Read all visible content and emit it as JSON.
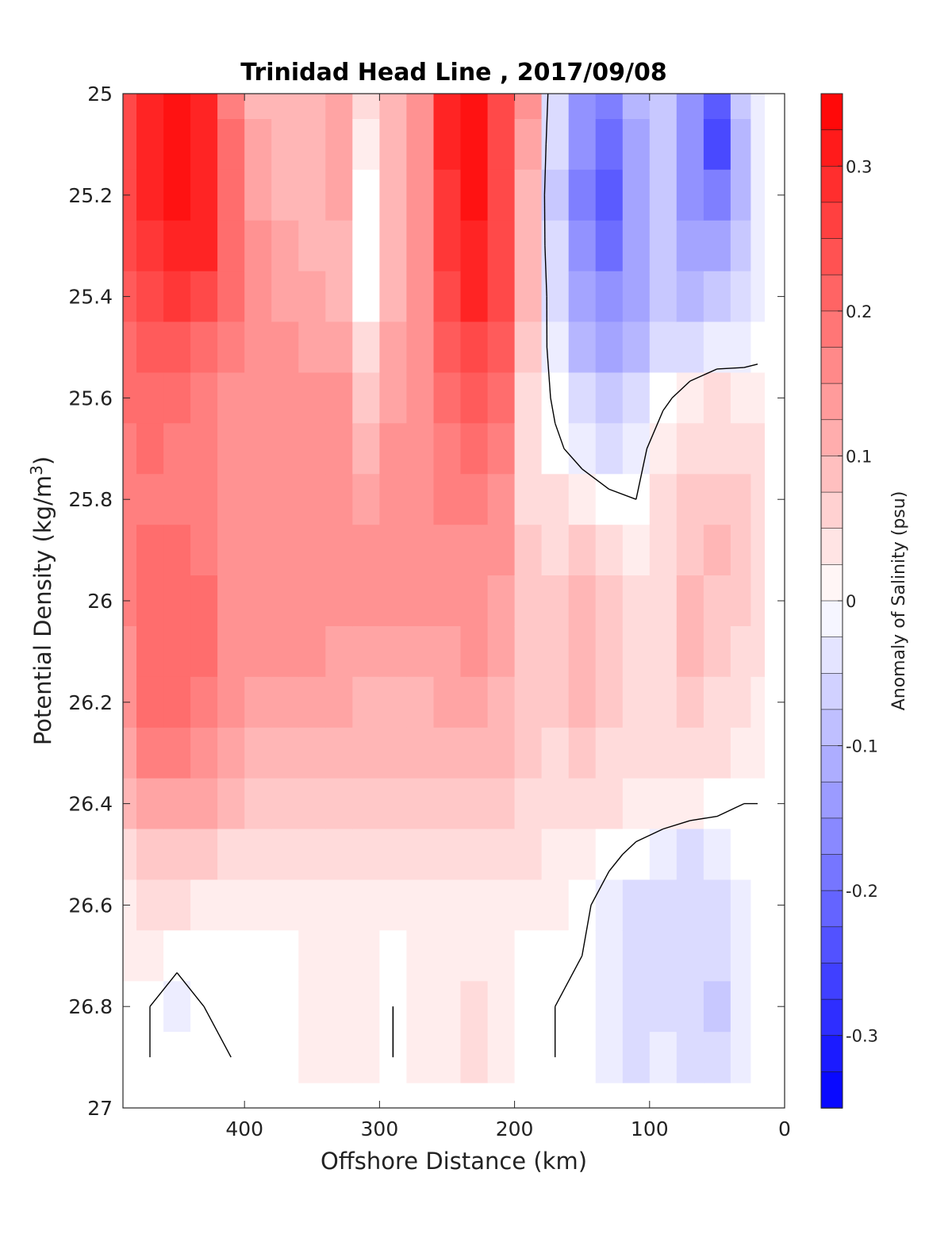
{
  "chart_data": {
    "type": "heatmap",
    "title": "Trinidad Head Line , 2017/09/08",
    "xlabel": "Offshore Distance (km)",
    "ylabel": "Potential Density (kg/m",
    "ylabel_sup": "3",
    "ylabel_close": ")",
    "colorbar_label": "Anomaly of Salinity (psu)",
    "x_reversed": true,
    "y_reversed": true,
    "xlim": [
      0,
      490
    ],
    "ylim": [
      25,
      27
    ],
    "x_ticks": [
      400,
      300,
      200,
      100,
      0
    ],
    "x_tick_labels": [
      "400",
      "300",
      "200",
      "100",
      "0"
    ],
    "y_ticks": [
      25,
      25.2,
      25.4,
      25.6,
      25.8,
      26,
      26.2,
      26.4,
      26.6,
      26.8,
      27
    ],
    "y_tick_labels": [
      "25",
      "25.2",
      "25.4",
      "25.6",
      "25.8",
      "26",
      "26.2",
      "26.4",
      "26.6",
      "26.8",
      "27"
    ],
    "colorbar": {
      "range": [
        -0.35,
        0.35
      ],
      "levels_step": 0.025,
      "ticks": [
        0.3,
        0.2,
        0.1,
        0,
        -0.1,
        -0.2,
        -0.3
      ],
      "tick_labels": [
        "0.3",
        "0.2",
        "0.1",
        "0",
        "-0.1",
        "-0.2",
        "-0.3"
      ],
      "colormap": "blue-white-red",
      "neg_color": "#0000ff",
      "zero_color": "#ffffff",
      "pos_color": "#ff0000"
    },
    "x": [
      490,
      470,
      450,
      430,
      410,
      390,
      370,
      350,
      330,
      310,
      290,
      270,
      250,
      230,
      210,
      190,
      170,
      150,
      130,
      110,
      90,
      70,
      50,
      30,
      20
    ],
    "y": [
      25.0,
      25.1,
      25.2,
      25.3,
      25.4,
      25.5,
      25.6,
      25.7,
      25.8,
      25.9,
      26.0,
      26.1,
      26.2,
      26.3,
      26.4,
      26.5,
      26.6,
      26.7,
      26.8,
      26.9
    ],
    "z": [
      [
        0.26,
        0.3,
        0.33,
        0.29,
        0.18,
        0.11,
        0.09,
        0.1,
        0.13,
        0.05,
        0.1,
        0.16,
        0.29,
        0.33,
        0.26,
        0.14,
        -0.05,
        -0.14,
        -0.18,
        -0.1,
        -0.07,
        -0.15,
        -0.22,
        -0.08,
        -0.02
      ],
      [
        0.26,
        0.3,
        0.33,
        0.3,
        0.19,
        0.12,
        0.1,
        0.11,
        0.13,
        0.03,
        0.1,
        0.16,
        0.29,
        0.33,
        0.26,
        0.12,
        -0.06,
        -0.16,
        -0.2,
        -0.12,
        -0.08,
        -0.16,
        -0.25,
        -0.1,
        -0.03
      ],
      [
        0.25,
        0.29,
        0.32,
        0.3,
        0.2,
        0.13,
        0.11,
        0.11,
        0.12,
        0.01,
        0.1,
        0.16,
        0.28,
        0.32,
        0.26,
        0.11,
        -0.07,
        -0.17,
        -0.22,
        -0.13,
        -0.08,
        -0.15,
        -0.17,
        -0.09,
        -0.02
      ],
      [
        0.24,
        0.28,
        0.31,
        0.29,
        0.2,
        0.14,
        0.12,
        0.11,
        0.11,
        0.0,
        0.1,
        0.15,
        0.27,
        0.31,
        0.25,
        0.1,
        -0.06,
        -0.16,
        -0.2,
        -0.13,
        -0.08,
        -0.12,
        -0.12,
        -0.08,
        -0.02
      ],
      [
        0.23,
        0.26,
        0.28,
        0.26,
        0.19,
        0.15,
        0.13,
        0.12,
        0.11,
        0.01,
        0.11,
        0.15,
        0.25,
        0.29,
        0.24,
        0.09,
        -0.04,
        -0.13,
        -0.16,
        -0.12,
        -0.07,
        -0.09,
        -0.08,
        -0.05,
        -0.02
      ],
      [
        0.21,
        0.23,
        0.23,
        0.21,
        0.17,
        0.15,
        0.14,
        0.13,
        0.12,
        0.04,
        0.12,
        0.15,
        0.22,
        0.26,
        0.22,
        0.07,
        -0.03,
        -0.09,
        -0.12,
        -0.09,
        -0.05,
        -0.04,
        -0.03,
        -0.02,
        -0.01
      ],
      [
        0.19,
        0.2,
        0.19,
        0.18,
        0.16,
        0.15,
        0.15,
        0.15,
        0.14,
        0.08,
        0.13,
        0.15,
        0.2,
        0.22,
        0.19,
        0.05,
        -0.01,
        -0.06,
        -0.08,
        -0.05,
        -0.01,
        0.02,
        0.04,
        0.03,
        0.02
      ],
      [
        0.18,
        0.19,
        0.18,
        0.17,
        0.16,
        0.16,
        0.16,
        0.16,
        0.16,
        0.11,
        0.14,
        0.15,
        0.18,
        0.2,
        0.17,
        0.05,
        0.01,
        -0.02,
        -0.04,
        -0.02,
        0.03,
        0.05,
        0.06,
        0.05,
        0.04
      ],
      [
        0.17,
        0.18,
        0.18,
        0.17,
        0.16,
        0.16,
        0.16,
        0.16,
        0.15,
        0.13,
        0.14,
        0.15,
        0.17,
        0.18,
        0.15,
        0.06,
        0.04,
        0.03,
        0.01,
        0.0,
        0.04,
        0.07,
        0.08,
        0.07,
        0.05
      ],
      [
        0.17,
        0.19,
        0.19,
        0.18,
        0.16,
        0.16,
        0.16,
        0.15,
        0.15,
        0.14,
        0.14,
        0.14,
        0.16,
        0.16,
        0.14,
        0.07,
        0.06,
        0.08,
        0.05,
        0.03,
        0.05,
        0.08,
        0.1,
        0.08,
        0.05
      ],
      [
        0.17,
        0.2,
        0.21,
        0.19,
        0.16,
        0.15,
        0.15,
        0.15,
        0.14,
        0.14,
        0.14,
        0.14,
        0.15,
        0.15,
        0.13,
        0.08,
        0.07,
        0.1,
        0.07,
        0.04,
        0.06,
        0.09,
        0.08,
        0.07,
        0.05
      ],
      [
        0.16,
        0.2,
        0.21,
        0.19,
        0.15,
        0.14,
        0.14,
        0.14,
        0.13,
        0.13,
        0.13,
        0.13,
        0.13,
        0.14,
        0.12,
        0.08,
        0.07,
        0.1,
        0.08,
        0.05,
        0.06,
        0.09,
        0.07,
        0.06,
        0.04
      ],
      [
        0.15,
        0.19,
        0.2,
        0.18,
        0.14,
        0.13,
        0.12,
        0.12,
        0.12,
        0.11,
        0.11,
        0.11,
        0.12,
        0.12,
        0.11,
        0.08,
        0.07,
        0.09,
        0.07,
        0.05,
        0.06,
        0.07,
        0.06,
        0.05,
        0.03
      ],
      [
        0.13,
        0.17,
        0.18,
        0.16,
        0.12,
        0.11,
        0.1,
        0.1,
        0.1,
        0.09,
        0.09,
        0.09,
        0.1,
        0.1,
        0.09,
        0.07,
        0.06,
        0.07,
        0.06,
        0.04,
        0.05,
        0.05,
        0.04,
        0.03,
        0.02
      ],
      [
        0.1,
        0.13,
        0.13,
        0.12,
        0.1,
        0.08,
        0.08,
        0.08,
        0.08,
        0.07,
        0.07,
        0.07,
        0.07,
        0.07,
        0.07,
        0.06,
        0.05,
        0.05,
        0.04,
        0.03,
        0.03,
        0.02,
        0.01,
        0.0,
        0.0
      ],
      [
        0.06,
        0.08,
        0.08,
        0.07,
        0.06,
        0.05,
        0.05,
        0.05,
        0.05,
        0.05,
        0.05,
        0.05,
        0.05,
        0.05,
        0.05,
        0.04,
        0.03,
        0.02,
        0.01,
        -0.01,
        -0.03,
        -0.04,
        -0.03,
        -0.01,
        0.0
      ],
      [
        0.03,
        0.04,
        0.04,
        0.03,
        0.02,
        0.02,
        0.02,
        0.02,
        0.03,
        0.03,
        0.02,
        0.03,
        0.03,
        0.03,
        0.02,
        0.02,
        0.02,
        0.01,
        -0.02,
        -0.04,
        -0.05,
        -0.06,
        -0.05,
        -0.02,
        0.0
      ],
      [
        0.02,
        0.02,
        0.01,
        0.01,
        0.01,
        0.01,
        0.01,
        0.02,
        0.03,
        0.03,
        0.01,
        0.03,
        0.03,
        0.03,
        0.02,
        0.01,
        0.01,
        0.0,
        -0.03,
        -0.05,
        -0.05,
        -0.06,
        -0.06,
        -0.03,
        0.0
      ],
      [
        0.01,
        0.0,
        -0.02,
        0.0,
        0.01,
        0.01,
        0.01,
        0.02,
        0.03,
        0.02,
        0.0,
        0.02,
        0.03,
        0.04,
        0.03,
        0.01,
        0.0,
        -0.01,
        -0.03,
        -0.04,
        -0.04,
        -0.05,
        -0.07,
        -0.03,
        0.0
      ],
      [
        0.01,
        0.0,
        -0.01,
        0.0,
        0.0,
        0.01,
        0.01,
        0.02,
        0.02,
        0.02,
        0.0,
        0.02,
        0.03,
        0.04,
        0.03,
        0.01,
        0.0,
        -0.01,
        -0.03,
        -0.04,
        -0.03,
        -0.04,
        -0.05,
        -0.02,
        0.0
      ]
    ]
  }
}
